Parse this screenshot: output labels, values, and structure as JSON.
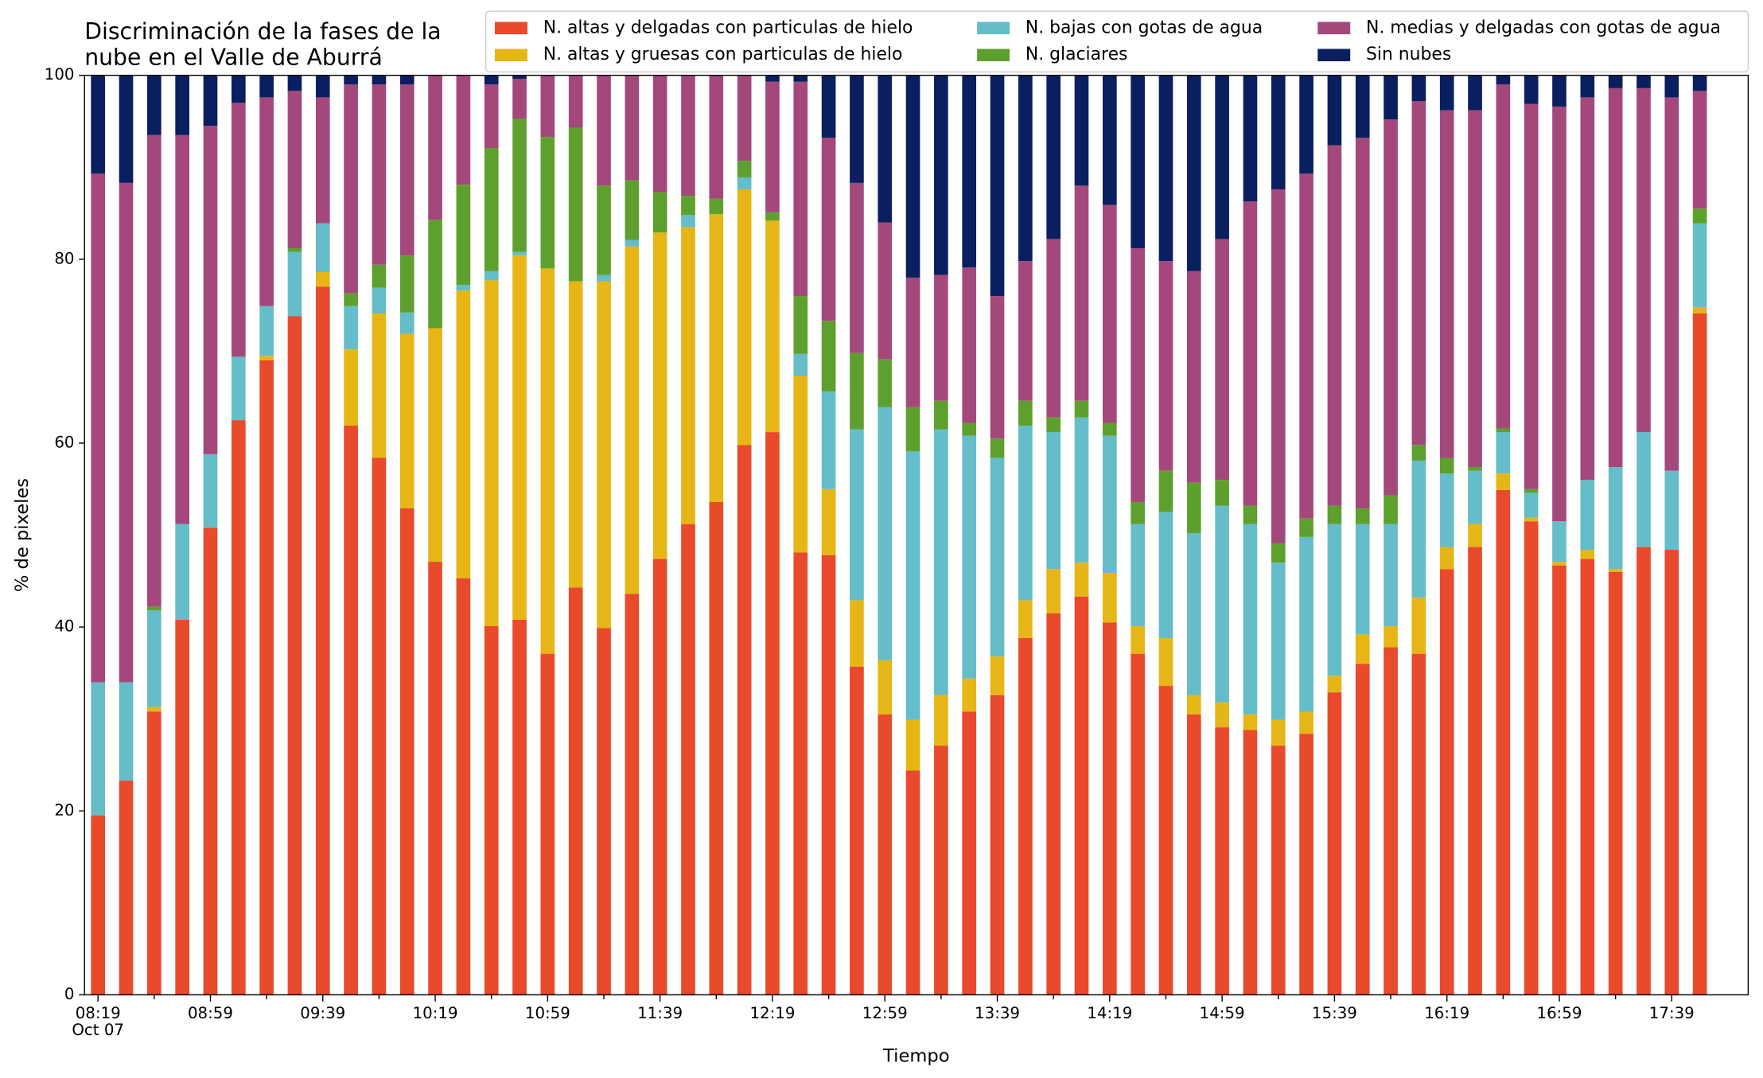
{
  "chart_data": {
    "type": "stacked_bar",
    "title": [
      "Discriminación de la fases de la",
      "nube en el Valle de Aburrá"
    ],
    "xlabel": "Tiempo",
    "ylabel": "% de pixeles",
    "date_label": "Oct 07",
    "categories": [
      "08:19",
      null,
      null,
      null,
      "08:59",
      null,
      null,
      null,
      "09:39",
      null,
      null,
      null,
      "10:19",
      null,
      null,
      null,
      "10:59",
      null,
      null,
      null,
      "11:39",
      null,
      null,
      null,
      "12:19",
      null,
      null,
      null,
      "12:59",
      null,
      null,
      null,
      "13:39",
      null,
      null,
      null,
      "14:19",
      null,
      null,
      null,
      "14:59",
      null,
      null,
      null,
      "15:39",
      null,
      null,
      null,
      "16:19",
      null,
      null,
      null,
      "16:59",
      null,
      null,
      null,
      "17:39",
      null
    ],
    "ylim": [
      0,
      100
    ],
    "yticks": [
      0,
      20,
      40,
      60,
      80,
      100
    ],
    "grid": false,
    "legend": "top",
    "series": [
      {
        "name": "N. altas y delgadas con particulas de hielo",
        "color": "#e84a2b",
        "values": [
          19.5,
          23.3,
          30.8,
          40.8,
          50.8,
          62.5,
          69,
          73.8,
          77,
          61.9,
          58.4,
          52.9,
          47.1,
          45.3,
          40.1,
          40.8,
          37.1,
          44.3,
          39.9,
          43.6,
          47.4,
          51.2,
          53.6,
          59.8,
          61.2,
          48.1,
          47.8,
          35.7,
          30.5,
          24.4,
          27.1,
          30.8,
          32.6,
          38.8,
          41.5,
          43.3,
          40.5,
          37.1,
          33.6,
          30.5,
          29.1,
          28.8,
          27.1,
          28.4,
          32.9,
          36,
          37.8,
          37.1,
          46.3,
          48.7,
          54.9,
          51.5,
          46.7,
          47.4,
          46,
          48.7,
          48.4,
          74.1
        ]
      },
      {
        "name": "N. altas y gruesas con particulas de hielo",
        "color": "#e6b617",
        "values": [
          0,
          0,
          0.5,
          0,
          0,
          0,
          0.5,
          0,
          1.6,
          8.3,
          15.7,
          19,
          25.4,
          31.3,
          37.6,
          39.6,
          41.9,
          33.3,
          37.7,
          37.8,
          35.5,
          32.3,
          31.3,
          27.8,
          23,
          19.2,
          7.2,
          7.2,
          5.9,
          5.5,
          5.5,
          3.6,
          4.2,
          4.1,
          4.8,
          3.7,
          5.4,
          3,
          5.2,
          2.1,
          2.7,
          1.7,
          2.8,
          2.4,
          1.8,
          3.2,
          2.3,
          6.1,
          2.4,
          2.5,
          1.8,
          0.4,
          0.4,
          1,
          0.3,
          0,
          0,
          0.7
        ]
      },
      {
        "name": "N. bajas con gotas de agua",
        "color": "#64bdc8",
        "values": [
          14.5,
          10.7,
          10.5,
          10.4,
          8,
          6.9,
          5.4,
          7,
          5.3,
          4.7,
          2.8,
          2.3,
          0,
          0.6,
          1,
          0.4,
          0,
          0,
          0.7,
          0.7,
          0,
          1.3,
          0,
          1.3,
          0,
          2.4,
          10.6,
          18.6,
          27.5,
          29.2,
          28.9,
          26.4,
          21.6,
          19,
          14.9,
          15.8,
          14.9,
          11.1,
          13.7,
          17.6,
          21.4,
          20.7,
          17.1,
          19,
          16.5,
          12,
          11.1,
          14.9,
          8,
          5.8,
          4.5,
          2.7,
          4.4,
          7.6,
          11.1,
          12.5,
          8.6,
          9.1
        ]
      },
      {
        "name": "N. glaciares",
        "color": "#5ea02d",
        "values": [
          0,
          0,
          0.4,
          0,
          0,
          0,
          0,
          0.4,
          0,
          1.4,
          2.5,
          6.2,
          11.8,
          10.9,
          13.4,
          14.5,
          14.3,
          16.7,
          9.7,
          6.5,
          4.4,
          2.1,
          1.7,
          1.8,
          0.9,
          6.3,
          7.7,
          8.3,
          5.2,
          4.8,
          3.1,
          1.4,
          2.1,
          2.7,
          1.6,
          1.8,
          1.4,
          2.4,
          4.5,
          5.5,
          2.8,
          2,
          2.1,
          2,
          2,
          1.7,
          3.1,
          1.7,
          1.7,
          0.4,
          0.4,
          0.4,
          0,
          0,
          0,
          0,
          0,
          1.6
        ]
      },
      {
        "name": "N. medias y delgadas con gotas de agua",
        "color": "#a4487c",
        "values": [
          55.3,
          54.3,
          51.3,
          42.3,
          35.7,
          27.6,
          22.7,
          17.1,
          13.7,
          22.7,
          19.6,
          18.6,
          15.7,
          11.9,
          6.9,
          4.3,
          6.7,
          5.7,
          12,
          11.4,
          12.7,
          13.1,
          13.4,
          9.3,
          14.2,
          23.3,
          19.9,
          18.5,
          14.9,
          14.1,
          13.7,
          16.9,
          15.5,
          15.2,
          19.4,
          23.4,
          23.7,
          27.6,
          22.8,
          23,
          26.2,
          33.1,
          38.5,
          37.5,
          39.2,
          40.3,
          40.9,
          37.4,
          37.8,
          38.8,
          37.4,
          41.9,
          45.1,
          41.6,
          41.2,
          37.4,
          40.6,
          12.8
        ]
      },
      {
        "name": "Sin nubes",
        "color": "#0a1f5f",
        "values": [
          10.7,
          11.7,
          6.5,
          6.5,
          5.5,
          3,
          2.4,
          1.7,
          2.4,
          1,
          1,
          1,
          0,
          0,
          1,
          0.4,
          0,
          0,
          0,
          0,
          0,
          0,
          0,
          0,
          0.7,
          0.7,
          6.8,
          11.7,
          16,
          22,
          21.7,
          20.9,
          24,
          20.2,
          17.8,
          12,
          14.1,
          18.8,
          20.2,
          21.3,
          17.8,
          13.7,
          12.4,
          10.7,
          7.6,
          6.8,
          4.8,
          2.8,
          3.8,
          3.8,
          1,
          3.1,
          3.4,
          2.4,
          1.4,
          1.4,
          2.4,
          1.7
        ]
      }
    ]
  }
}
